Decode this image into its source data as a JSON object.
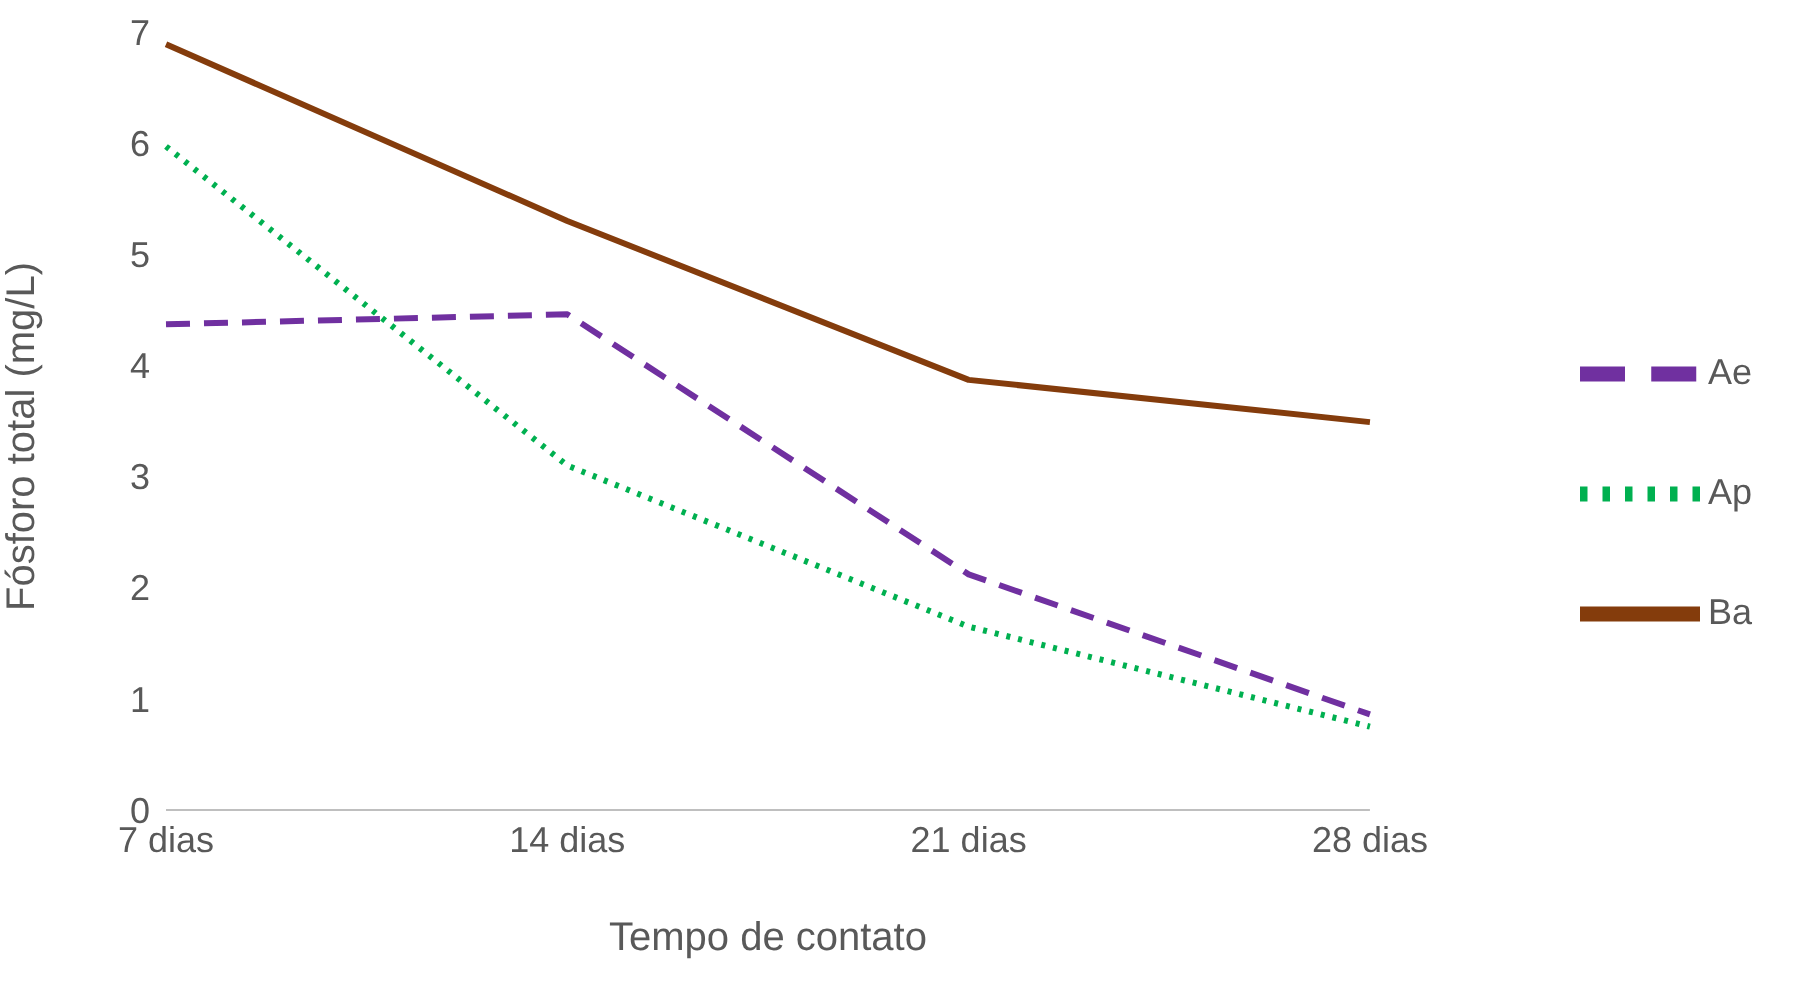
{
  "chart_data": {
    "type": "line",
    "xlabel": "Tempo de contato",
    "ylabel": "Fósforo total (mg/L)",
    "categories": [
      "7 dias",
      "14 dias",
      "21 dias",
      "28 dias"
    ],
    "series": [
      {
        "name": "Ap",
        "color": "#00b050",
        "values": [
          5.97,
          3.1,
          1.65,
          0.75
        ],
        "line_style": "dotted"
      },
      {
        "name": "Ae",
        "color": "#7030a0",
        "values": [
          4.37,
          4.46,
          2.12,
          0.86
        ],
        "line_style": "dashed"
      },
      {
        "name": "Ba",
        "color": "#843c0c",
        "values": [
          6.89,
          5.3,
          3.87,
          3.49
        ],
        "line_style": "solid"
      }
    ],
    "ylim": [
      0,
      7
    ],
    "yticks": [
      0,
      1,
      2,
      3,
      4,
      5,
      6,
      7
    ],
    "grid": false,
    "legend": "right",
    "marker": "none"
  }
}
